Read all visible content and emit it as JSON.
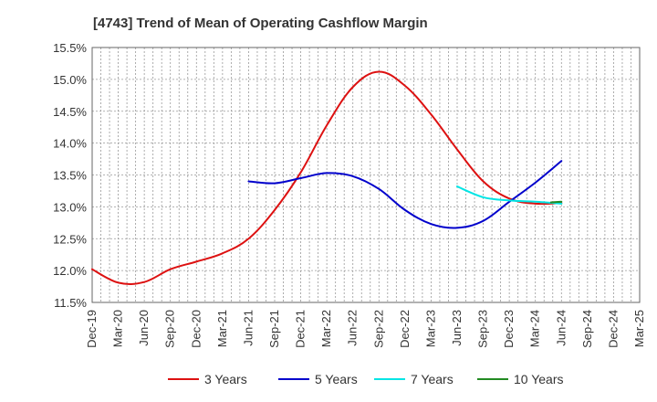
{
  "chart_data": {
    "type": "line",
    "title": "[4743]  Trend of Mean of Operating Cashflow Margin",
    "xlabel": "",
    "ylabel": "",
    "ylim": [
      11.5,
      15.5
    ],
    "yticks": [
      11.5,
      12.0,
      12.5,
      13.0,
      13.5,
      14.0,
      14.5,
      15.0,
      15.5
    ],
    "ytick_labels": [
      "11.5%",
      "12.0%",
      "12.5%",
      "13.0%",
      "13.5%",
      "14.0%",
      "14.5%",
      "15.0%",
      "15.5%"
    ],
    "x_tick_labels": [
      "Dec-19",
      "Mar-20",
      "Jun-20",
      "Sep-20",
      "Dec-20",
      "Mar-21",
      "Jun-21",
      "Sep-21",
      "Dec-21",
      "Mar-22",
      "Jun-22",
      "Sep-22",
      "Dec-22",
      "Mar-23",
      "Jun-23",
      "Sep-23",
      "Dec-23",
      "Mar-24",
      "Jun-24",
      "Sep-24",
      "Dec-24",
      "Mar-25"
    ],
    "x_range": [
      0,
      20
    ],
    "grid": true,
    "legend_position": "bottom",
    "series": [
      {
        "name": "3 Years",
        "color": "#dd1111",
        "x": [
          0,
          1,
          2,
          3,
          4,
          5,
          6,
          7,
          8,
          9,
          10,
          11,
          12,
          13,
          14,
          15,
          16,
          17,
          18
        ],
        "values": [
          12.02,
          11.81,
          11.82,
          12.02,
          12.14,
          12.27,
          12.5,
          12.95,
          13.54,
          14.28,
          14.88,
          15.12,
          14.9,
          14.45,
          13.9,
          13.4,
          13.13,
          13.05,
          13.06
        ]
      },
      {
        "name": "5 Years",
        "color": "#0000cc",
        "x": [
          6,
          7,
          8,
          9,
          10,
          11,
          12,
          13,
          14,
          15,
          16,
          17,
          18
        ],
        "values": [
          13.4,
          13.37,
          13.45,
          13.53,
          13.48,
          13.28,
          12.95,
          12.73,
          12.67,
          12.78,
          13.08,
          13.38,
          13.72
        ]
      },
      {
        "name": "7 Years",
        "color": "#00e5e5",
        "x": [
          14,
          15,
          16,
          17,
          18
        ],
        "values": [
          13.32,
          13.15,
          13.1,
          13.08,
          13.05
        ]
      },
      {
        "name": "10 Years",
        "color": "#228b22",
        "x": [
          17.6,
          18
        ],
        "values": [
          13.07,
          13.08
        ]
      }
    ]
  }
}
